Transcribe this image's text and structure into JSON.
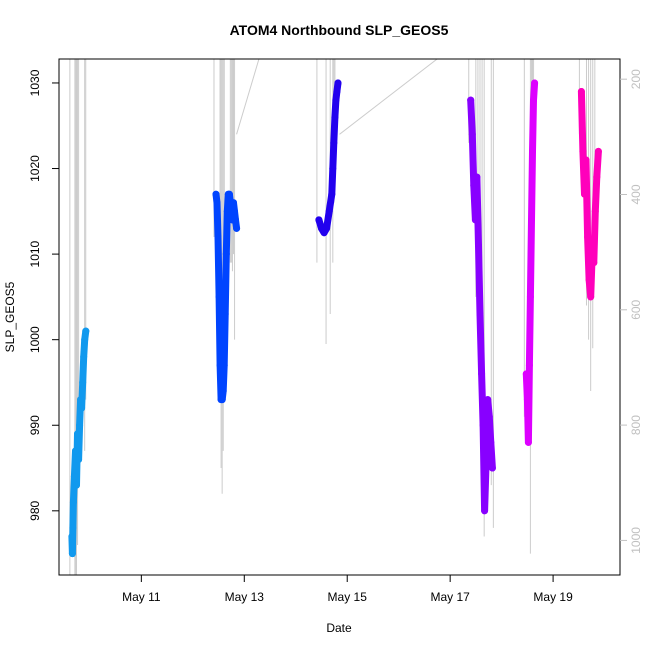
{
  "chart_data": {
    "type": "line",
    "title": "ATOM4 Northbound SLP_GEOS5",
    "xlabel": "Date",
    "ylabel": "SLP_GEOS5",
    "x_ticks": [
      "May 11",
      "May 13",
      "May 15",
      "May 17",
      "May 19"
    ],
    "x_tick_values": [
      11,
      13,
      15,
      17,
      19
    ],
    "xlim": [
      9.4,
      20.3
    ],
    "ylim": [
      972.5,
      1032.8
    ],
    "y_ticks": [
      980,
      990,
      1000,
      1010,
      1020,
      1030
    ],
    "y2_ticks": [
      200,
      400,
      600,
      800,
      1000
    ],
    "y2lim": [
      1060,
      165
    ],
    "series": [
      {
        "color": "#1199ee",
        "x": [
          9.65,
          9.66,
          9.67,
          9.68,
          9.7,
          9.72,
          9.74,
          9.76,
          9.78,
          9.8,
          9.82,
          9.84,
          9.86,
          9.88,
          9.9,
          9.92
        ],
        "y": [
          977,
          975,
          978,
          981,
          984,
          987,
          983,
          989,
          986,
          990,
          993,
          992,
          995,
          998,
          1000,
          1001
        ]
      },
      {
        "color": "#0044ff",
        "x": [
          12.45,
          12.47,
          12.49,
          12.51,
          12.53,
          12.55,
          12.57,
          12.59,
          12.61,
          12.63,
          12.65,
          12.67,
          12.69,
          12.71,
          12.73,
          12.75,
          12.77,
          12.79,
          12.81,
          12.83,
          12.85
        ],
        "y": [
          1017,
          1016,
          1012,
          1005,
          997,
          993,
          993,
          994,
          997,
          1003,
          1010,
          1015,
          1017,
          1017,
          1016,
          1015,
          1014,
          1016,
          1015,
          1014,
          1013
        ]
      },
      {
        "color": "#2200ee",
        "x": [
          14.45,
          14.5,
          14.55,
          14.6,
          14.65,
          14.7,
          14.72,
          14.74,
          14.76,
          14.78,
          14.8,
          14.82
        ],
        "y": [
          1014,
          1013,
          1012.5,
          1013,
          1015,
          1017,
          1020,
          1023,
          1026,
          1028,
          1029,
          1030
        ]
      },
      {
        "color": "#8800ff",
        "x": [
          17.4,
          17.43,
          17.46,
          17.49,
          17.52,
          17.55,
          17.58,
          17.61,
          17.64,
          17.67,
          17.7,
          17.73,
          17.76,
          17.79,
          17.82
        ],
        "y": [
          1028,
          1024,
          1018,
          1014,
          1019,
          1011,
          1003,
          996,
          990,
          980,
          986,
          993,
          991,
          988,
          985
        ]
      },
      {
        "color": "#dd00ff",
        "x": [
          18.48,
          18.5,
          18.52,
          18.54,
          18.56,
          18.58,
          18.6,
          18.62,
          18.64
        ],
        "y": [
          996,
          993,
          988,
          997,
          1005,
          1014,
          1022,
          1028,
          1030
        ]
      },
      {
        "color": "#ff00bb",
        "x": [
          19.55,
          19.58,
          19.61,
          19.64,
          19.67,
          19.7,
          19.73,
          19.76,
          19.79,
          19.82,
          19.85,
          19.88
        ],
        "y": [
          1029,
          1022,
          1017,
          1021,
          1012,
          1007,
          1005,
          1010,
          1009,
          1015,
          1019,
          1022
        ]
      }
    ]
  }
}
